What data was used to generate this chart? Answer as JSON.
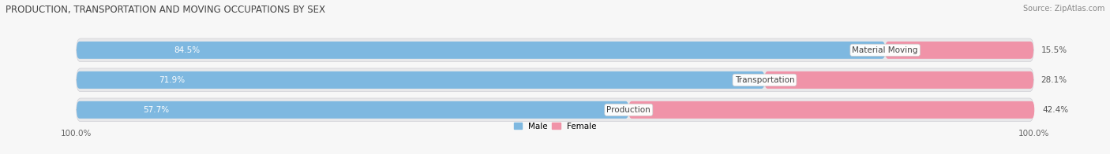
{
  "title": "PRODUCTION, TRANSPORTATION AND MOVING OCCUPATIONS BY SEX",
  "source": "Source: ZipAtlas.com",
  "categories": [
    "Material Moving",
    "Transportation",
    "Production"
  ],
  "male_values": [
    84.5,
    71.9,
    57.7
  ],
  "female_values": [
    15.5,
    28.1,
    42.4
  ],
  "male_color": "#7eb8e0",
  "female_color": "#f093a8",
  "bar_bg_color": "#e8e8ea",
  "bar_bg_color2": "#f0f0f2",
  "title_fontsize": 8.5,
  "source_fontsize": 7,
  "label_fontsize": 7.5,
  "pct_fontsize": 7.5,
  "cat_fontsize": 7.5,
  "bar_height": 0.58,
  "background_color": "#f7f7f7",
  "xlim_left": -8,
  "xlim_right": 108
}
